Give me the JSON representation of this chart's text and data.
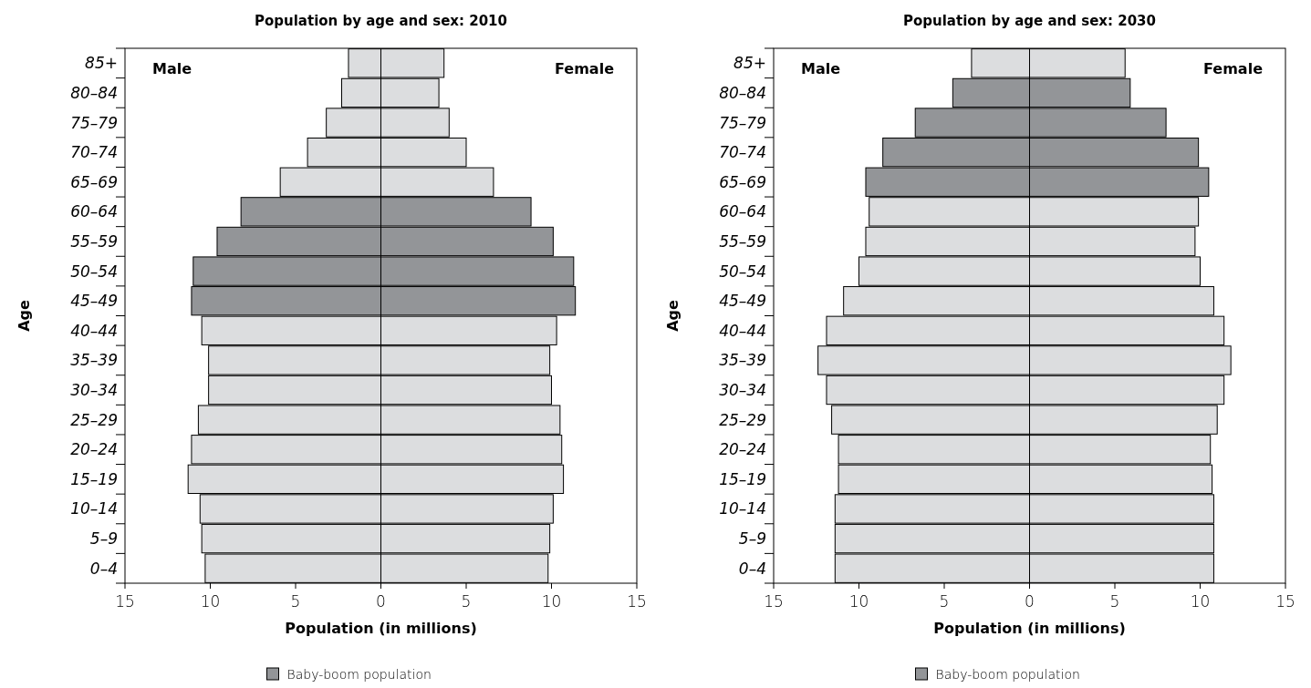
{
  "chart_data": [
    {
      "type": "bar",
      "orientation": "horizontal",
      "stacked": true,
      "title": "Population by age and sex: 2010",
      "xlabel": "Population (in millions)",
      "ylabel": "Age",
      "annotations": [
        "Male",
        "Female"
      ],
      "legend_title": "Baby-boom population",
      "categories": [
        "85+",
        "80–84",
        "75–79",
        "70–74",
        "65–69",
        "60–64",
        "55–59",
        "50–54",
        "45–49",
        "40–44",
        "35–39",
        "30–34",
        "25–29",
        "20–24",
        "15–19",
        "10–14",
        "5–9",
        "0–4"
      ],
      "xlim": [
        -15,
        15
      ],
      "xticks": [
        {
          "value": -15,
          "label": "15"
        },
        {
          "value": -10,
          "label": "10"
        },
        {
          "value": -5,
          "label": "5"
        },
        0,
        5,
        10,
        15
      ],
      "series": [
        {
          "color": "#dcdddf",
          "colors": [
            "#dcdddf",
            "#dcdddf",
            "#dcdddf",
            "#dcdddf",
            "#dcdddf",
            "#939598",
            "#939598",
            "#939598",
            "#939598",
            "#dcdddf",
            "#dcdddf",
            "#dcdddf",
            "#dcdddf",
            "#dcdddf",
            "#dcdddf",
            "#dcdddf",
            "#dcdddf",
            "#dcdddf"
          ],
          "values": [
            -1.9,
            -2.3,
            -3.2,
            -4.3,
            -5.9,
            -8.2,
            -9.6,
            -11.0,
            -11.1,
            -10.5,
            -10.1,
            -10.1,
            -10.7,
            -11.1,
            -11.3,
            -10.6,
            -10.5,
            -10.3
          ]
        },
        {
          "color": "#dcdddf",
          "colors": [
            "#dcdddf",
            "#dcdddf",
            "#dcdddf",
            "#dcdddf",
            "#dcdddf",
            "#939598",
            "#939598",
            "#939598",
            "#939598",
            "#dcdddf",
            "#dcdddf",
            "#dcdddf",
            "#dcdddf",
            "#dcdddf",
            "#dcdddf",
            "#dcdddf",
            "#dcdddf",
            "#dcdddf"
          ],
          "values": [
            3.7,
            3.4,
            4.0,
            5.0,
            6.6,
            8.8,
            10.1,
            11.3,
            11.4,
            10.3,
            9.9,
            10.0,
            10.5,
            10.6,
            10.7,
            10.1,
            9.9,
            9.8
          ]
        }
      ]
    },
    {
      "type": "bar",
      "orientation": "horizontal",
      "stacked": true,
      "title": "Population by age and sex: 2030",
      "xlabel": "Population (in millions)",
      "ylabel": "Age",
      "annotations": [
        "Male",
        "Female"
      ],
      "legend_title": "Baby-boom population",
      "categories": [
        "85+",
        "80–84",
        "75–79",
        "70–74",
        "65–69",
        "60–64",
        "55–59",
        "50–54",
        "45–49",
        "40–44",
        "35–39",
        "30–34",
        "25–29",
        "20–24",
        "15–19",
        "10–14",
        "5–9",
        "0–4"
      ],
      "xlim": [
        -15,
        15
      ],
      "xticks": [
        {
          "value": -15,
          "label": "15"
        },
        {
          "value": -10,
          "label": "10"
        },
        {
          "value": -5,
          "label": "5"
        },
        0,
        5,
        10,
        15
      ],
      "series": [
        {
          "color": "#dcdddf",
          "colors": [
            "#dcdddf",
            "#939598",
            "#939598",
            "#939598",
            "#939598",
            "#dcdddf",
            "#dcdddf",
            "#dcdddf",
            "#dcdddf",
            "#dcdddf",
            "#dcdddf",
            "#dcdddf",
            "#dcdddf",
            "#dcdddf",
            "#dcdddf",
            "#dcdddf",
            "#dcdddf",
            "#dcdddf"
          ],
          "values": [
            -3.4,
            -4.5,
            -6.7,
            -8.6,
            -9.6,
            -9.4,
            -9.6,
            -10.0,
            -10.9,
            -11.9,
            -12.4,
            -11.9,
            -11.6,
            -11.2,
            -11.2,
            -11.4,
            -11.4,
            -11.4
          ]
        },
        {
          "color": "#dcdddf",
          "colors": [
            "#dcdddf",
            "#939598",
            "#939598",
            "#939598",
            "#939598",
            "#dcdddf",
            "#dcdddf",
            "#dcdddf",
            "#dcdddf",
            "#dcdddf",
            "#dcdddf",
            "#dcdddf",
            "#dcdddf",
            "#dcdddf",
            "#dcdddf",
            "#dcdddf",
            "#dcdddf",
            "#dcdddf"
          ],
          "values": [
            5.6,
            5.9,
            8.0,
            9.9,
            10.5,
            9.9,
            9.7,
            10.0,
            10.8,
            11.4,
            11.8,
            11.4,
            11.0,
            10.6,
            10.7,
            10.8,
            10.8,
            10.8
          ]
        }
      ]
    }
  ]
}
